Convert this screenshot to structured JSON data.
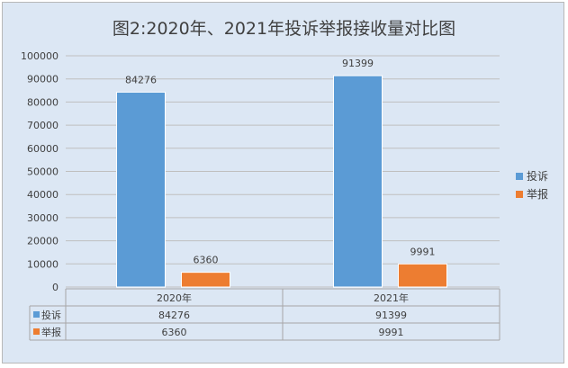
{
  "chart_data": {
    "type": "bar",
    "title": "图2:2020年、2021年投诉举报接收量对比图",
    "categories": [
      "2020年",
      "2021年"
    ],
    "series": [
      {
        "name": "投诉",
        "values": [
          84276,
          91399
        ],
        "color": "#5b9bd5"
      },
      {
        "name": "举报",
        "values": [
          6360,
          9991
        ],
        "color": "#ed7d31"
      }
    ],
    "ylim": [
      0,
      100000
    ],
    "yticks": [
      "0",
      "10000",
      "20000",
      "30000",
      "40000",
      "50000",
      "60000",
      "70000",
      "80000",
      "90000",
      "100000"
    ],
    "data_labels": [
      [
        "84276",
        "91399"
      ],
      [
        "6360",
        "9991"
      ]
    ],
    "grid": true,
    "legend": "right",
    "data_table": true
  }
}
